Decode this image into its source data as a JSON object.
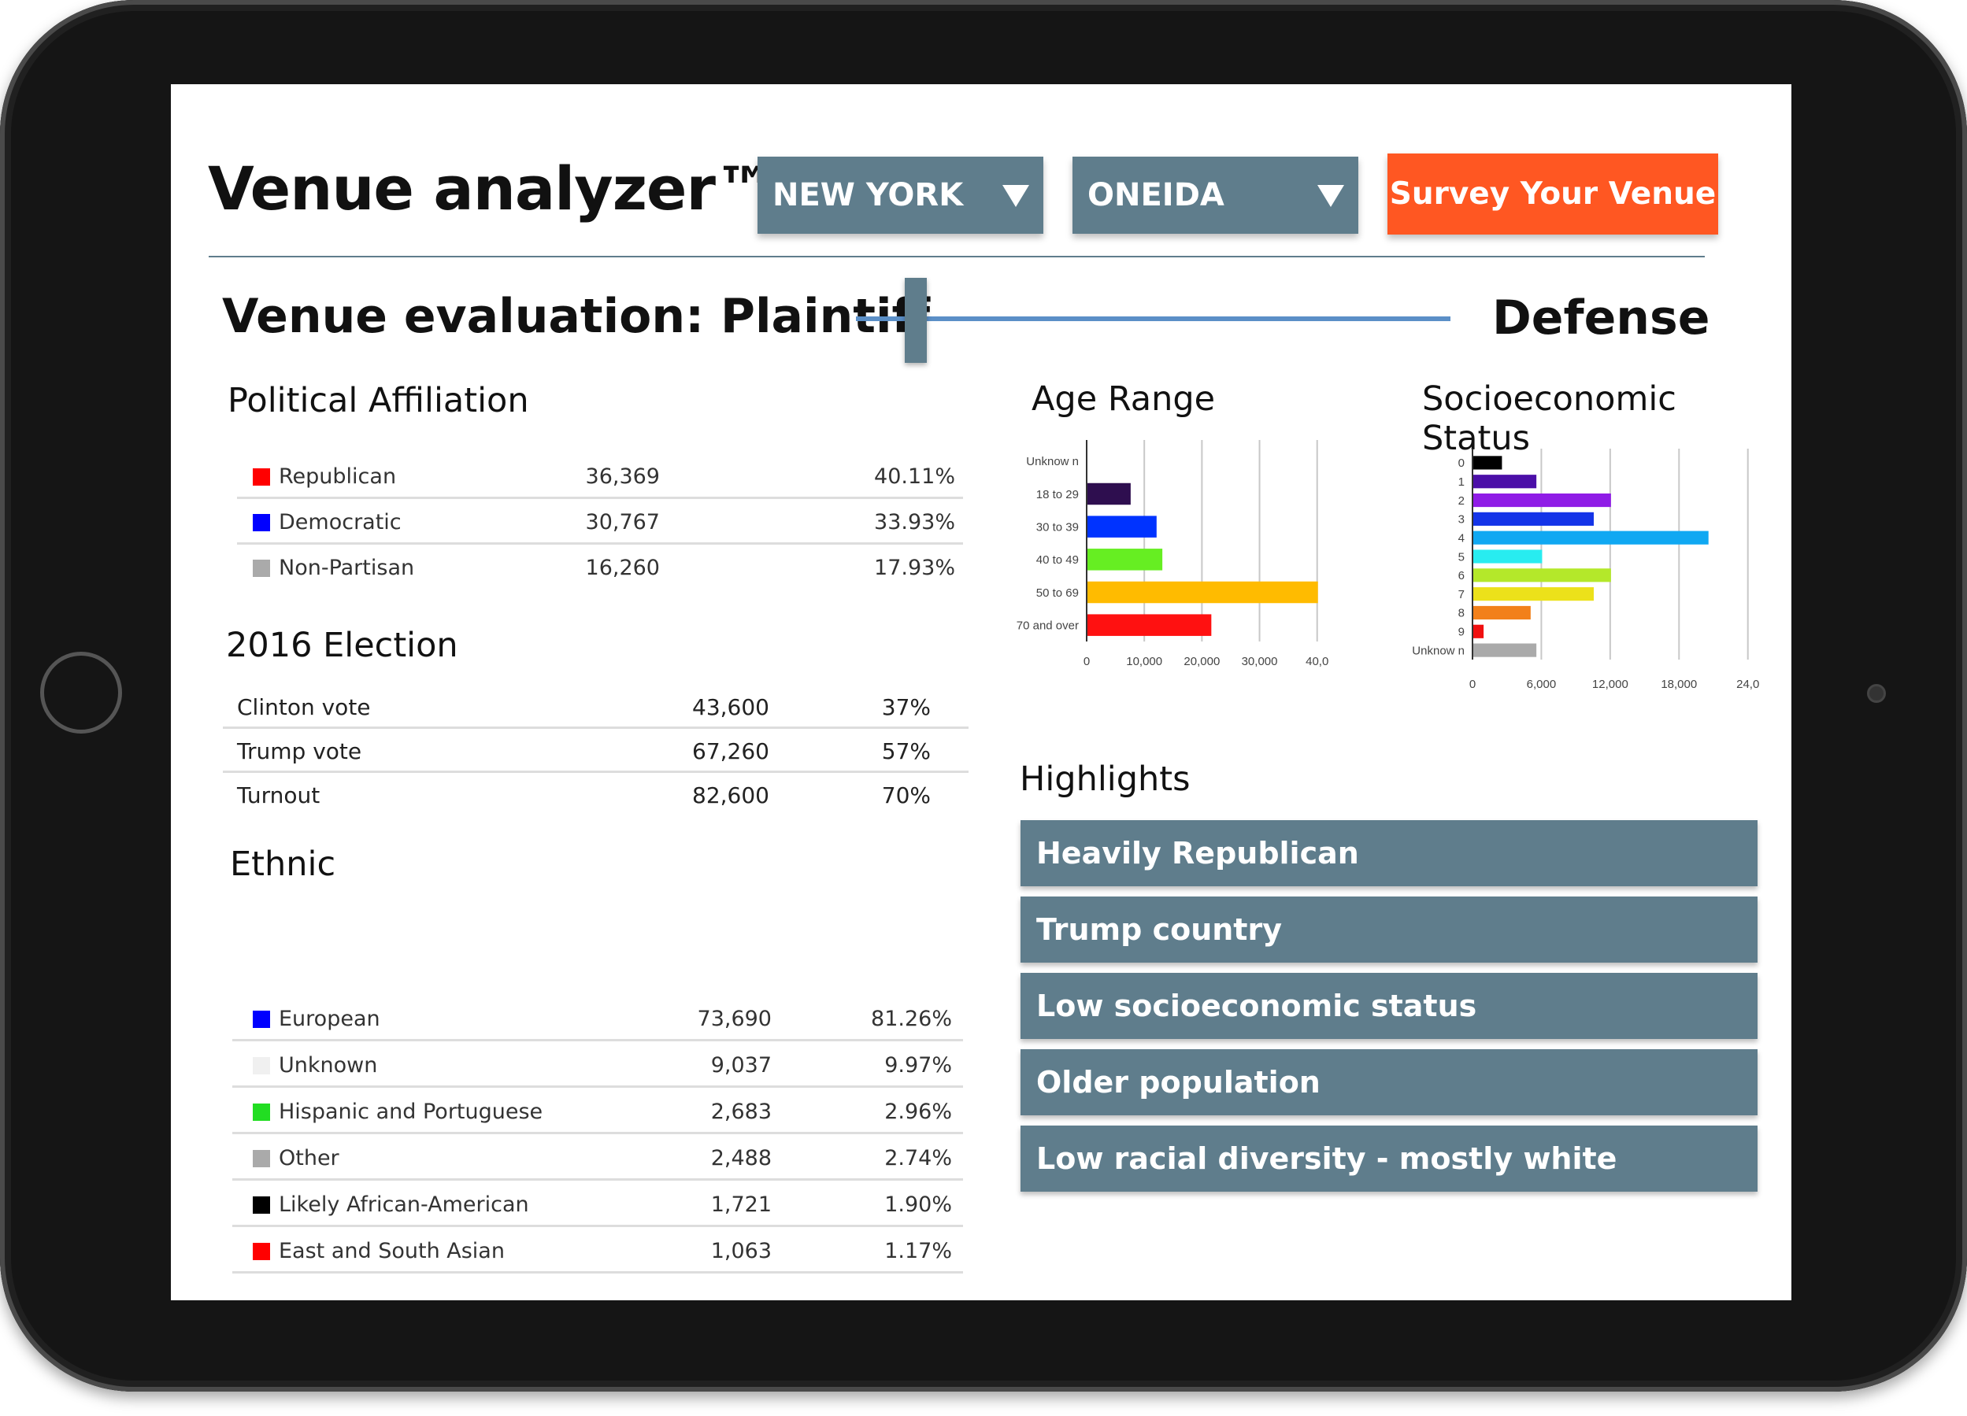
{
  "app": {
    "title": "Venue analyzer™"
  },
  "dropdowns": {
    "state": "NEW YORK",
    "county": "ONEIDA"
  },
  "survey_button": "Survey Your Venue",
  "evaluation": {
    "label": "Venue evaluation:",
    "left": "Plaintiff",
    "right": "Defense",
    "slider_position": 0.1
  },
  "political": {
    "title": "Political Affiliation",
    "rows": [
      {
        "name": "Republican",
        "count": "36,369",
        "pct": "40.11%",
        "color": "#ff0000"
      },
      {
        "name": "Democratic",
        "count": "30,767",
        "pct": "33.93%",
        "color": "#0000ff"
      },
      {
        "name": "Non-Partisan",
        "count": "16,260",
        "pct": "17.93%",
        "color": "#aaaaaa"
      }
    ]
  },
  "election": {
    "title": "2016 Election",
    "rows": [
      {
        "name": "Clinton vote",
        "count": "43,600",
        "pct": "37%"
      },
      {
        "name": "Trump vote",
        "count": "67,260",
        "pct": "57%"
      },
      {
        "name": "Turnout",
        "count": "82,600",
        "pct": "70%"
      }
    ]
  },
  "ethnic": {
    "title": "Ethnic",
    "rows": [
      {
        "name": "European",
        "count": "73,690",
        "pct": "81.26%",
        "color": "#0000ff"
      },
      {
        "name": "Unknown",
        "count": "9,037",
        "pct": "9.97%",
        "color": "#f0f0f0"
      },
      {
        "name": "Hispanic and Portuguese",
        "count": "2,683",
        "pct": "2.96%",
        "color": "#22dd22"
      },
      {
        "name": "Other",
        "count": "2,488",
        "pct": "2.74%",
        "color": "#aaaaaa"
      },
      {
        "name": "Likely African-American",
        "count": "1,721",
        "pct": "1.90%",
        "color": "#000000"
      },
      {
        "name": "East and South Asian",
        "count": "1,063",
        "pct": "1.17%",
        "color": "#ff0000"
      }
    ]
  },
  "highlights": {
    "title": "Highlights",
    "items": [
      "Heavily Republican",
      "Trump country",
      "Low socioeconomic status",
      "Older population",
      "Low racial diversity - mostly white"
    ]
  },
  "chart_data": [
    {
      "type": "bar",
      "title": "Age Range",
      "orientation": "horizontal",
      "categories": [
        "Unknow n",
        "18 to 29",
        "30 to 39",
        "40 to 49",
        "50 to 69",
        "70 and over"
      ],
      "values": [
        0,
        7500,
        12000,
        13000,
        40000,
        21500
      ],
      "colors": [
        "#cccccc",
        "#2e0e4f",
        "#0033ff",
        "#66ee22",
        "#ffbb00",
        "#ff1111"
      ],
      "xticks": [
        "0",
        "10,000",
        "20,000",
        "30,000",
        "40,0"
      ],
      "xtick_values": [
        0,
        10000,
        20000,
        30000,
        40000
      ],
      "xlim": [
        0,
        44000
      ],
      "grid": true
    },
    {
      "type": "bar",
      "title": "Socioeconomic Status",
      "orientation": "horizontal",
      "categories": [
        "0",
        "1",
        "2",
        "3",
        "4",
        "5",
        "6",
        "7",
        "8",
        "9",
        "Unknow n"
      ],
      "values": [
        2500,
        5500,
        12000,
        10500,
        20500,
        6000,
        12000,
        10500,
        5000,
        900,
        5500
      ],
      "colors": [
        "#000000",
        "#4b0fa8",
        "#8f1ce6",
        "#1434e8",
        "#10a8f2",
        "#28ecf0",
        "#b4e82a",
        "#ece11a",
        "#f2801a",
        "#f01010",
        "#aaaaaa"
      ],
      "xticks": [
        "0",
        "6,000",
        "12,000",
        "18,000",
        "24,0"
      ],
      "xtick_values": [
        0,
        6000,
        12000,
        18000,
        24000
      ],
      "xlim": [
        0,
        24500
      ],
      "grid": true
    }
  ]
}
